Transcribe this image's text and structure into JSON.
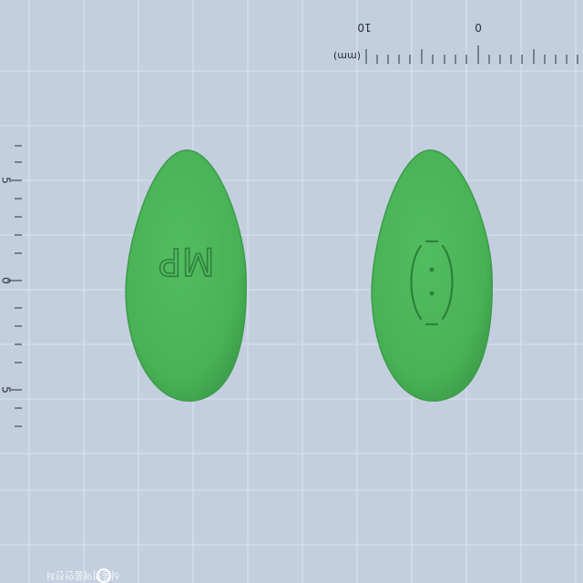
{
  "scale": {
    "unit_label": "(mm)",
    "top_labels": [
      "10",
      "0"
    ],
    "left_labels": [
      "5",
      "0",
      "5"
    ]
  },
  "pills": [
    {
      "name": "pill-front",
      "imprint": "MP",
      "color": "#49b456"
    },
    {
      "name": "pill-back",
      "imprint": "(:)",
      "color": "#49b456"
    }
  ],
  "watermark": "식품의약품안전처",
  "colors": {
    "background": "#c3cfdf",
    "grid": "#d7e0ec",
    "pill": "#49b456",
    "pill_edge": "#3a9a48",
    "imprint": "#2f7f3c"
  }
}
